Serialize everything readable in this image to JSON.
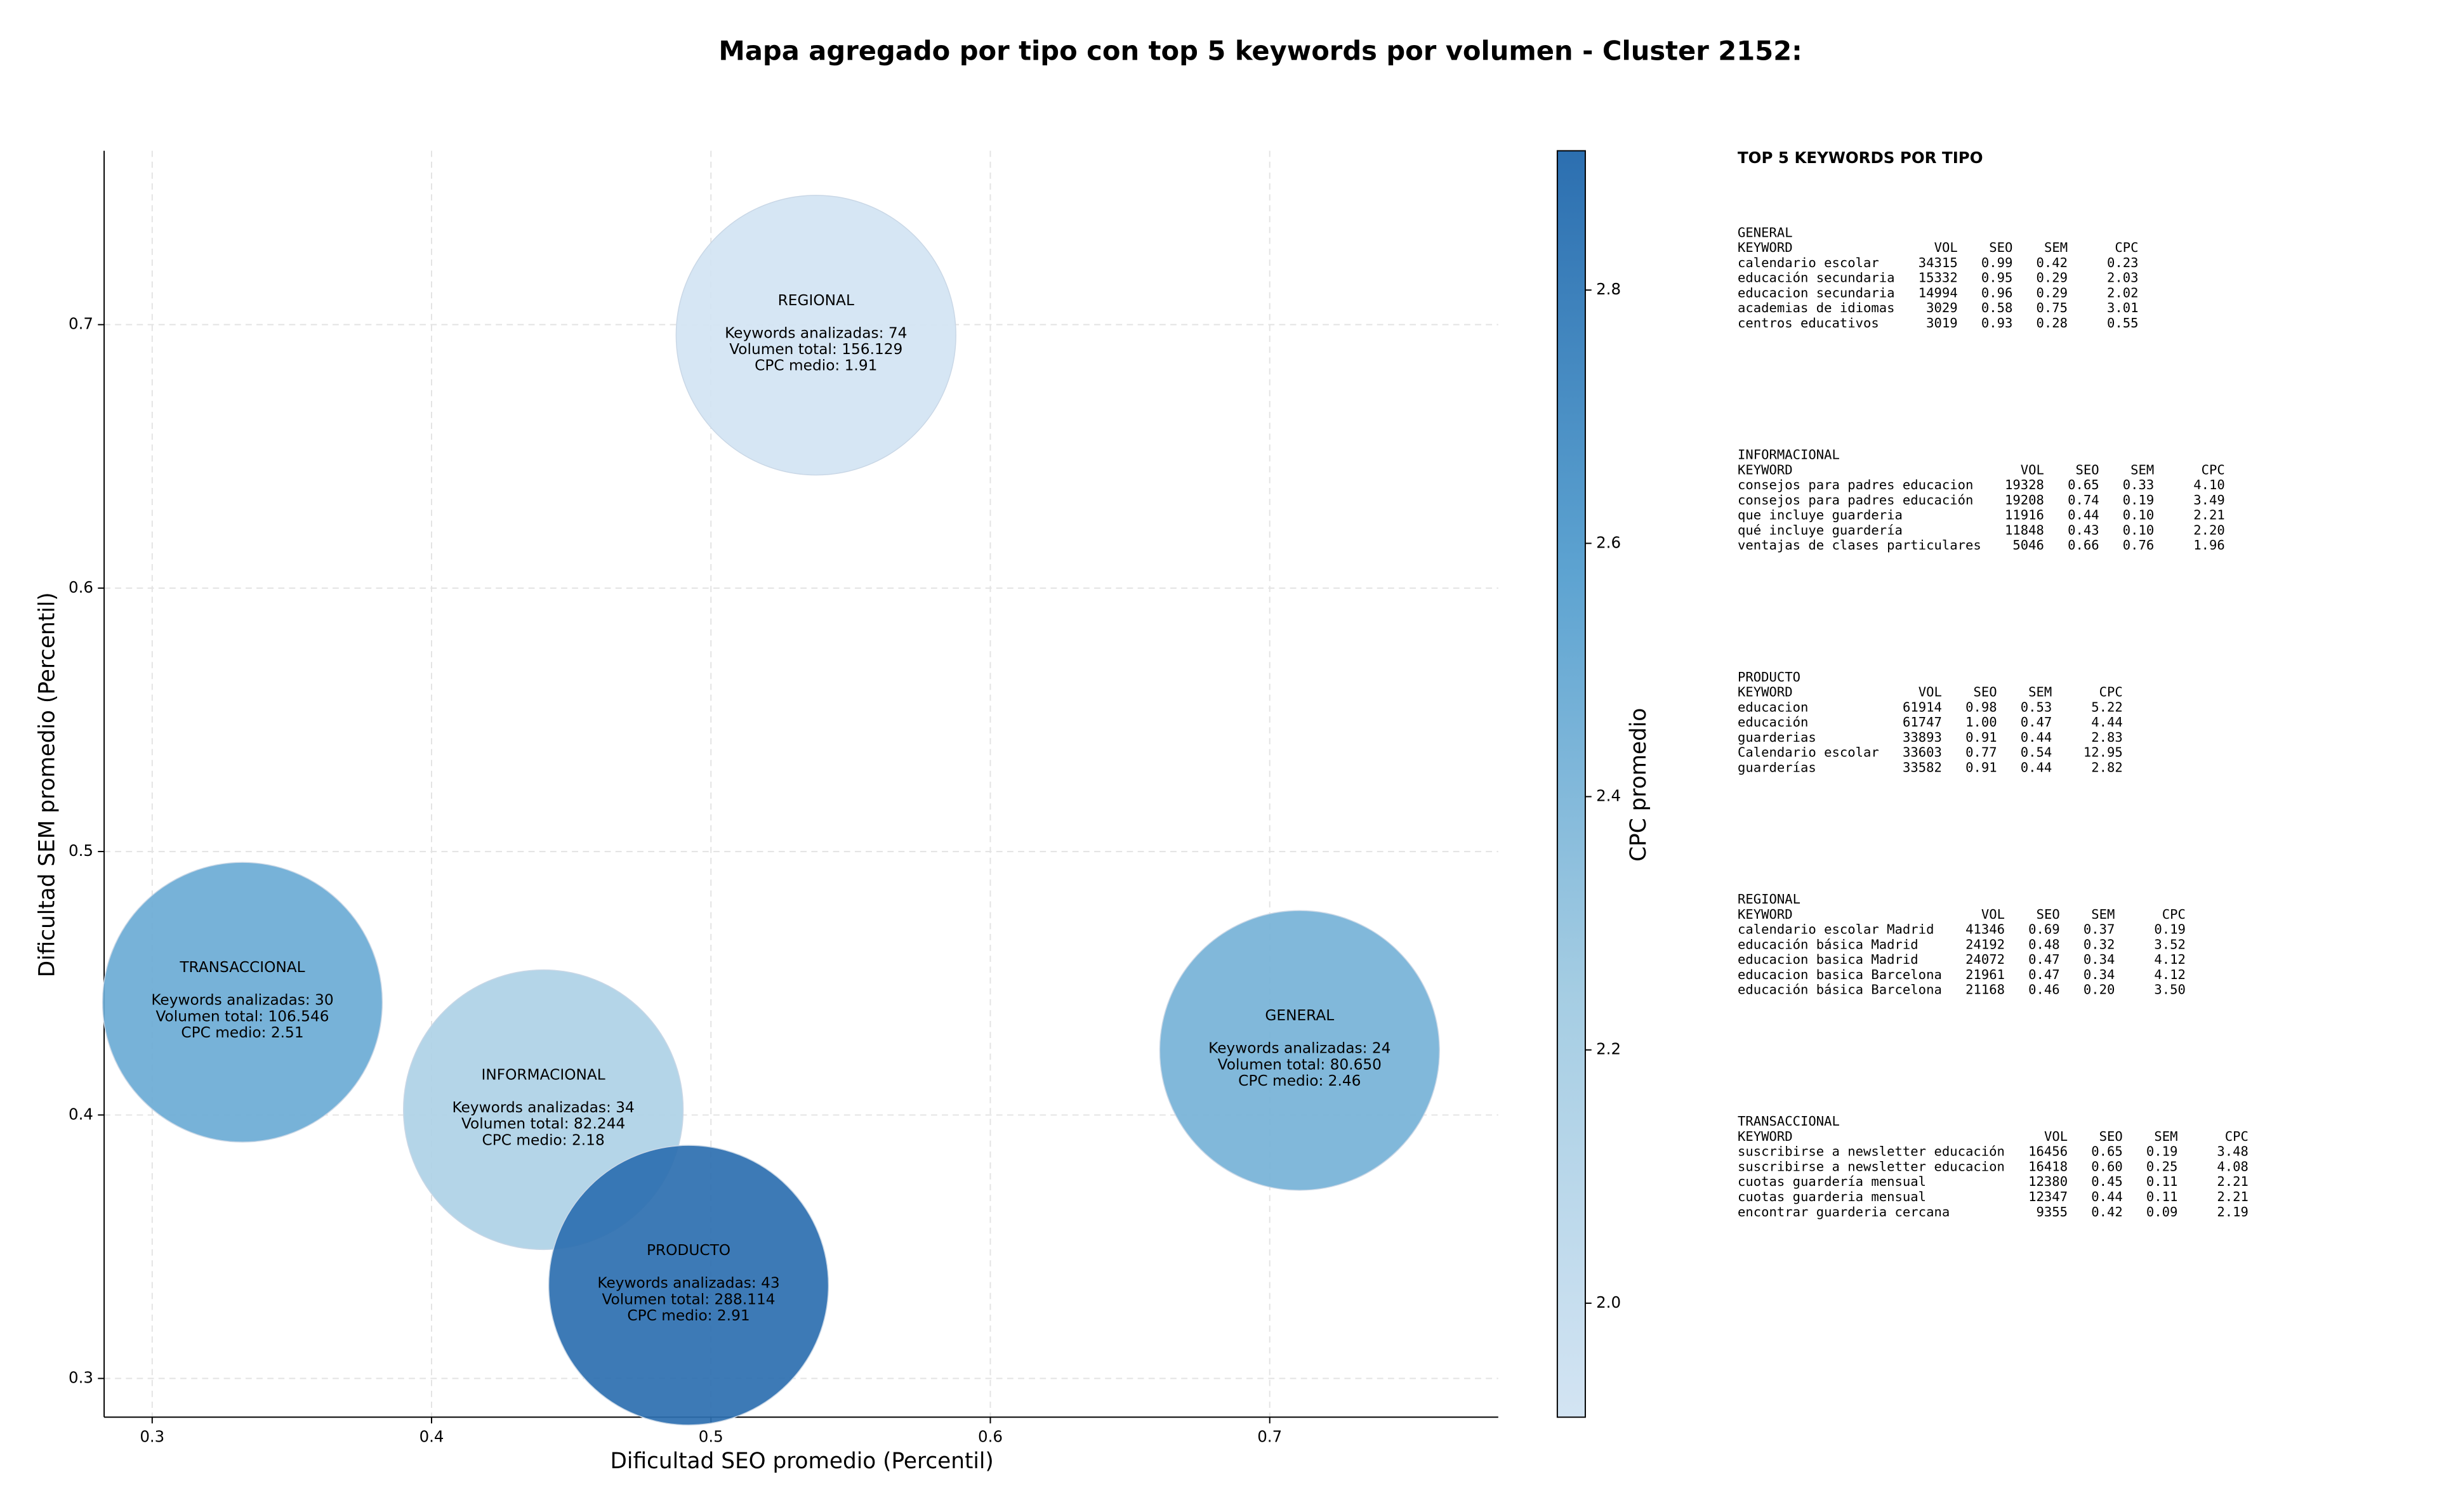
{
  "chart_data": {
    "type": "bubble",
    "title": "Mapa agregado por tipo con top 5 keywords por volumen - Cluster 2152:",
    "xlabel": "Dificultad SEO promedio (Percentil)",
    "ylabel": "Dificultad SEM promedio (Percentil)",
    "xlim": [
      0.2828,
      0.7818
    ],
    "ylim": [
      0.2853,
      0.766
    ],
    "xticks": [
      0.3,
      0.4,
      0.5,
      0.6,
      0.7
    ],
    "yticks": [
      0.3,
      0.4,
      0.5,
      0.6,
      0.7
    ],
    "grid": true,
    "colorbar": {
      "label": "CPC promedio",
      "lim": [
        1.91,
        2.91
      ],
      "ticks": [
        {
          "value": 2,
          "label": "2.0"
        },
        2.2,
        2.4,
        2.6,
        2.8
      ],
      "colors": [
        "#d3e4f3",
        "#a5cde3",
        "#5da3d1",
        "#2c6fb0"
      ]
    },
    "points": [
      {
        "name": "REGIONAL",
        "x": 0.5376,
        "y": 0.696,
        "cpc": 1.91,
        "lines": [
          "Keywords analizadas: 74",
          "Volumen total: 156.129",
          "CPC medio: 1.91"
        ]
      },
      {
        "name": "TRANSACCIONAL",
        "x": 0.3323,
        "y": 0.4428,
        "cpc": 2.51,
        "lines": [
          "Keywords analizadas: 30",
          "Volumen total: 106.546",
          "CPC medio: 2.51"
        ]
      },
      {
        "name": "INFORMACIONAL",
        "x": 0.44,
        "y": 0.402,
        "cpc": 2.18,
        "lines": [
          "Keywords analizadas: 34",
          "Volumen total: 82.244",
          "CPC medio: 2.18"
        ]
      },
      {
        "name": "PRODUCTO",
        "x": 0.492,
        "y": 0.3354,
        "cpc": 2.91,
        "lines": [
          "Keywords analizadas: 43",
          "Volumen total: 288.114",
          "CPC medio: 2.91"
        ]
      },
      {
        "name": "GENERAL",
        "x": 0.7107,
        "y": 0.4245,
        "cpc": 2.46,
        "lines": [
          "Keywords analizadas: 24",
          "Volumen total: 80.650",
          "CPC medio: 2.46"
        ]
      }
    ]
  },
  "panel": {
    "title": "TOP 5 KEYWORDS POR TIPO",
    "columns": [
      "KEYWORD",
      "VOL",
      "SEO",
      "SEM",
      "CPC"
    ],
    "groups": [
      {
        "name": "GENERAL",
        "rows": [
          [
            "calendario escolar",
            "34315",
            "0.99",
            "0.42",
            "0.23"
          ],
          [
            "educación secundaria",
            "15332",
            "0.95",
            "0.29",
            "2.03"
          ],
          [
            "educacion secundaria",
            "14994",
            "0.96",
            "0.29",
            "2.02"
          ],
          [
            "academias de idiomas",
            "3029",
            "0.58",
            "0.75",
            "3.01"
          ],
          [
            "centros educativos",
            "3019",
            "0.93",
            "0.28",
            "0.55"
          ]
        ]
      },
      {
        "name": "INFORMACIONAL",
        "rows": [
          [
            "consejos para padres educacion",
            "19328",
            "0.65",
            "0.33",
            "4.10"
          ],
          [
            "consejos para padres educación",
            "19208",
            "0.74",
            "0.19",
            "3.49"
          ],
          [
            "que incluye guarderia",
            "11916",
            "0.44",
            "0.10",
            "2.21"
          ],
          [
            "qué incluye guardería",
            "11848",
            "0.43",
            "0.10",
            "2.20"
          ],
          [
            "ventajas de clases particulares",
            "5046",
            "0.66",
            "0.76",
            "1.96"
          ]
        ]
      },
      {
        "name": "PRODUCTO",
        "rows": [
          [
            "educacion",
            "61914",
            "0.98",
            "0.53",
            "5.22"
          ],
          [
            "educación",
            "61747",
            "1.00",
            "0.47",
            "4.44"
          ],
          [
            "guarderias",
            "33893",
            "0.91",
            "0.44",
            "2.83"
          ],
          [
            "Calendario escolar",
            "33603",
            "0.77",
            "0.54",
            "12.95"
          ],
          [
            "guarderías",
            "33582",
            "0.91",
            "0.44",
            "2.82"
          ]
        ]
      },
      {
        "name": "REGIONAL",
        "rows": [
          [
            "calendario escolar Madrid",
            "41346",
            "0.69",
            "0.37",
            "0.19"
          ],
          [
            "educación básica Madrid",
            "24192",
            "0.48",
            "0.32",
            "3.52"
          ],
          [
            "educacion basica Madrid",
            "24072",
            "0.47",
            "0.34",
            "4.12"
          ],
          [
            "educacion basica Barcelona",
            "21961",
            "0.47",
            "0.34",
            "4.12"
          ],
          [
            "educación básica Barcelona",
            "21168",
            "0.46",
            "0.20",
            "3.50"
          ]
        ]
      },
      {
        "name": "TRANSACCIONAL",
        "rows": [
          [
            "suscribirse a newsletter educación",
            "16456",
            "0.65",
            "0.19",
            "3.48"
          ],
          [
            "suscribirse a newsletter educacion",
            "16418",
            "0.60",
            "0.25",
            "4.08"
          ],
          [
            "cuotas guardería mensual",
            "12380",
            "0.45",
            "0.11",
            "2.21"
          ],
          [
            "cuotas guarderia mensual",
            "12347",
            "0.44",
            "0.11",
            "2.21"
          ],
          [
            "encontrar guarderia cercana",
            "9355",
            "0.42",
            "0.09",
            "2.19"
          ]
        ]
      }
    ]
  }
}
